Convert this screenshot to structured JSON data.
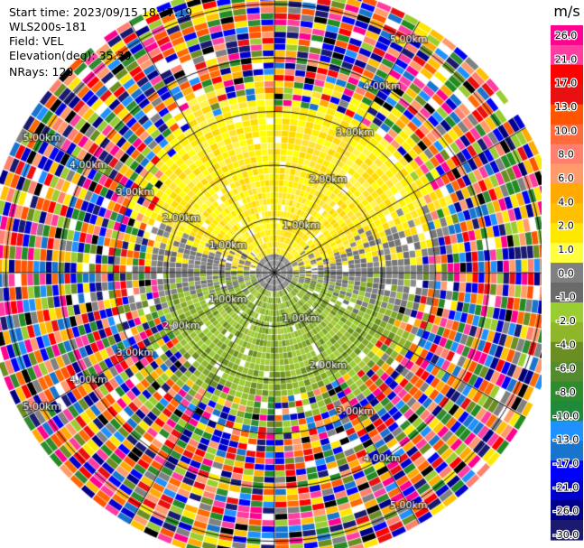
{
  "info": {
    "start_time": "Start time: 2023/09/15 18:17:19",
    "instrument": "WLS200s-181",
    "field": "Field: VEL",
    "elevation": "Elevation(deg): 35.30",
    "nrays": "NRays: 120"
  },
  "chart_data": {
    "type": "heatmap",
    "subtype": "polar-ppi",
    "field": "VEL",
    "nrays": 120,
    "range_rings_km": [
      1.0,
      2.0,
      3.0,
      4.0,
      5.0
    ],
    "ring_labels": [
      "1.00km",
      "2.00km",
      "3.00km",
      "4.00km",
      "5.00km"
    ],
    "max_range_km": 5.4,
    "spokes_deg": [
      0,
      30,
      60,
      90,
      120,
      150,
      180,
      210,
      240,
      270,
      300,
      330
    ],
    "colorbar": {
      "unit": "m/s",
      "ticks": [
        "26.0",
        "21.0",
        "17.0",
        "13.0",
        "10.0",
        "8.0",
        "6.0",
        "4.0",
        "2.0",
        "1.0",
        "0.0",
        "-1.0",
        "-2.0",
        "-4.0",
        "-6.0",
        "-8.0",
        "-10.0",
        "-13.0",
        "-17.0",
        "-21.0",
        "-26.0",
        "-30.0"
      ],
      "colors": [
        "#ff0090",
        "#ff3ca0",
        "#ff0000",
        "#e81010",
        "#ff5500",
        "#ff6a3a",
        "#ff7f6e",
        "#ff9a6a",
        "#ffaa00",
        "#ffc000",
        "#ffe800",
        "#ffff40",
        "#808080",
        "#6a6a6a",
        "#9acd32",
        "#8fb62b",
        "#6b8e23",
        "#558b2f",
        "#2e8b2e",
        "#1f8a3a",
        "#1e90ff",
        "#1874cd",
        "#0000ff",
        "#0000cd",
        "#00008b",
        "#1a1a70"
      ]
    }
  }
}
